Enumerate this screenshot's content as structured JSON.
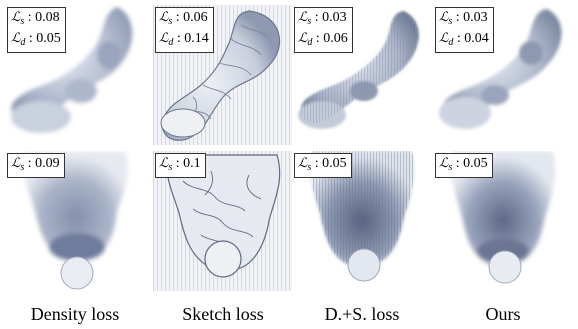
{
  "figure": {
    "columns": [
      {
        "caption": "Density loss",
        "top": {
          "ls": "0.08",
          "ld": "0.05"
        },
        "bottom": {
          "ls": "0.09"
        }
      },
      {
        "caption": "Sketch loss",
        "top": {
          "ls": "0.06",
          "ld": "0.14"
        },
        "bottom": {
          "ls": "0.1"
        }
      },
      {
        "caption": "D.+S. loss",
        "top": {
          "ls": "0.03",
          "ld": "0.06"
        },
        "bottom": {
          "ls": "0.05"
        }
      },
      {
        "caption": "Ours",
        "top": {
          "ls": "0.03",
          "ld": "0.04"
        },
        "bottom": {
          "ls": "0.05"
        }
      }
    ],
    "symbols": {
      "ls_sub": "s",
      "ld_sub": "d",
      "sep": " : "
    },
    "colors": {
      "smoke_light": "#dfe4ee",
      "smoke_mid": "#a9b3c8",
      "smoke_dark": "#5d6a88",
      "background": "#ffffff"
    }
  }
}
